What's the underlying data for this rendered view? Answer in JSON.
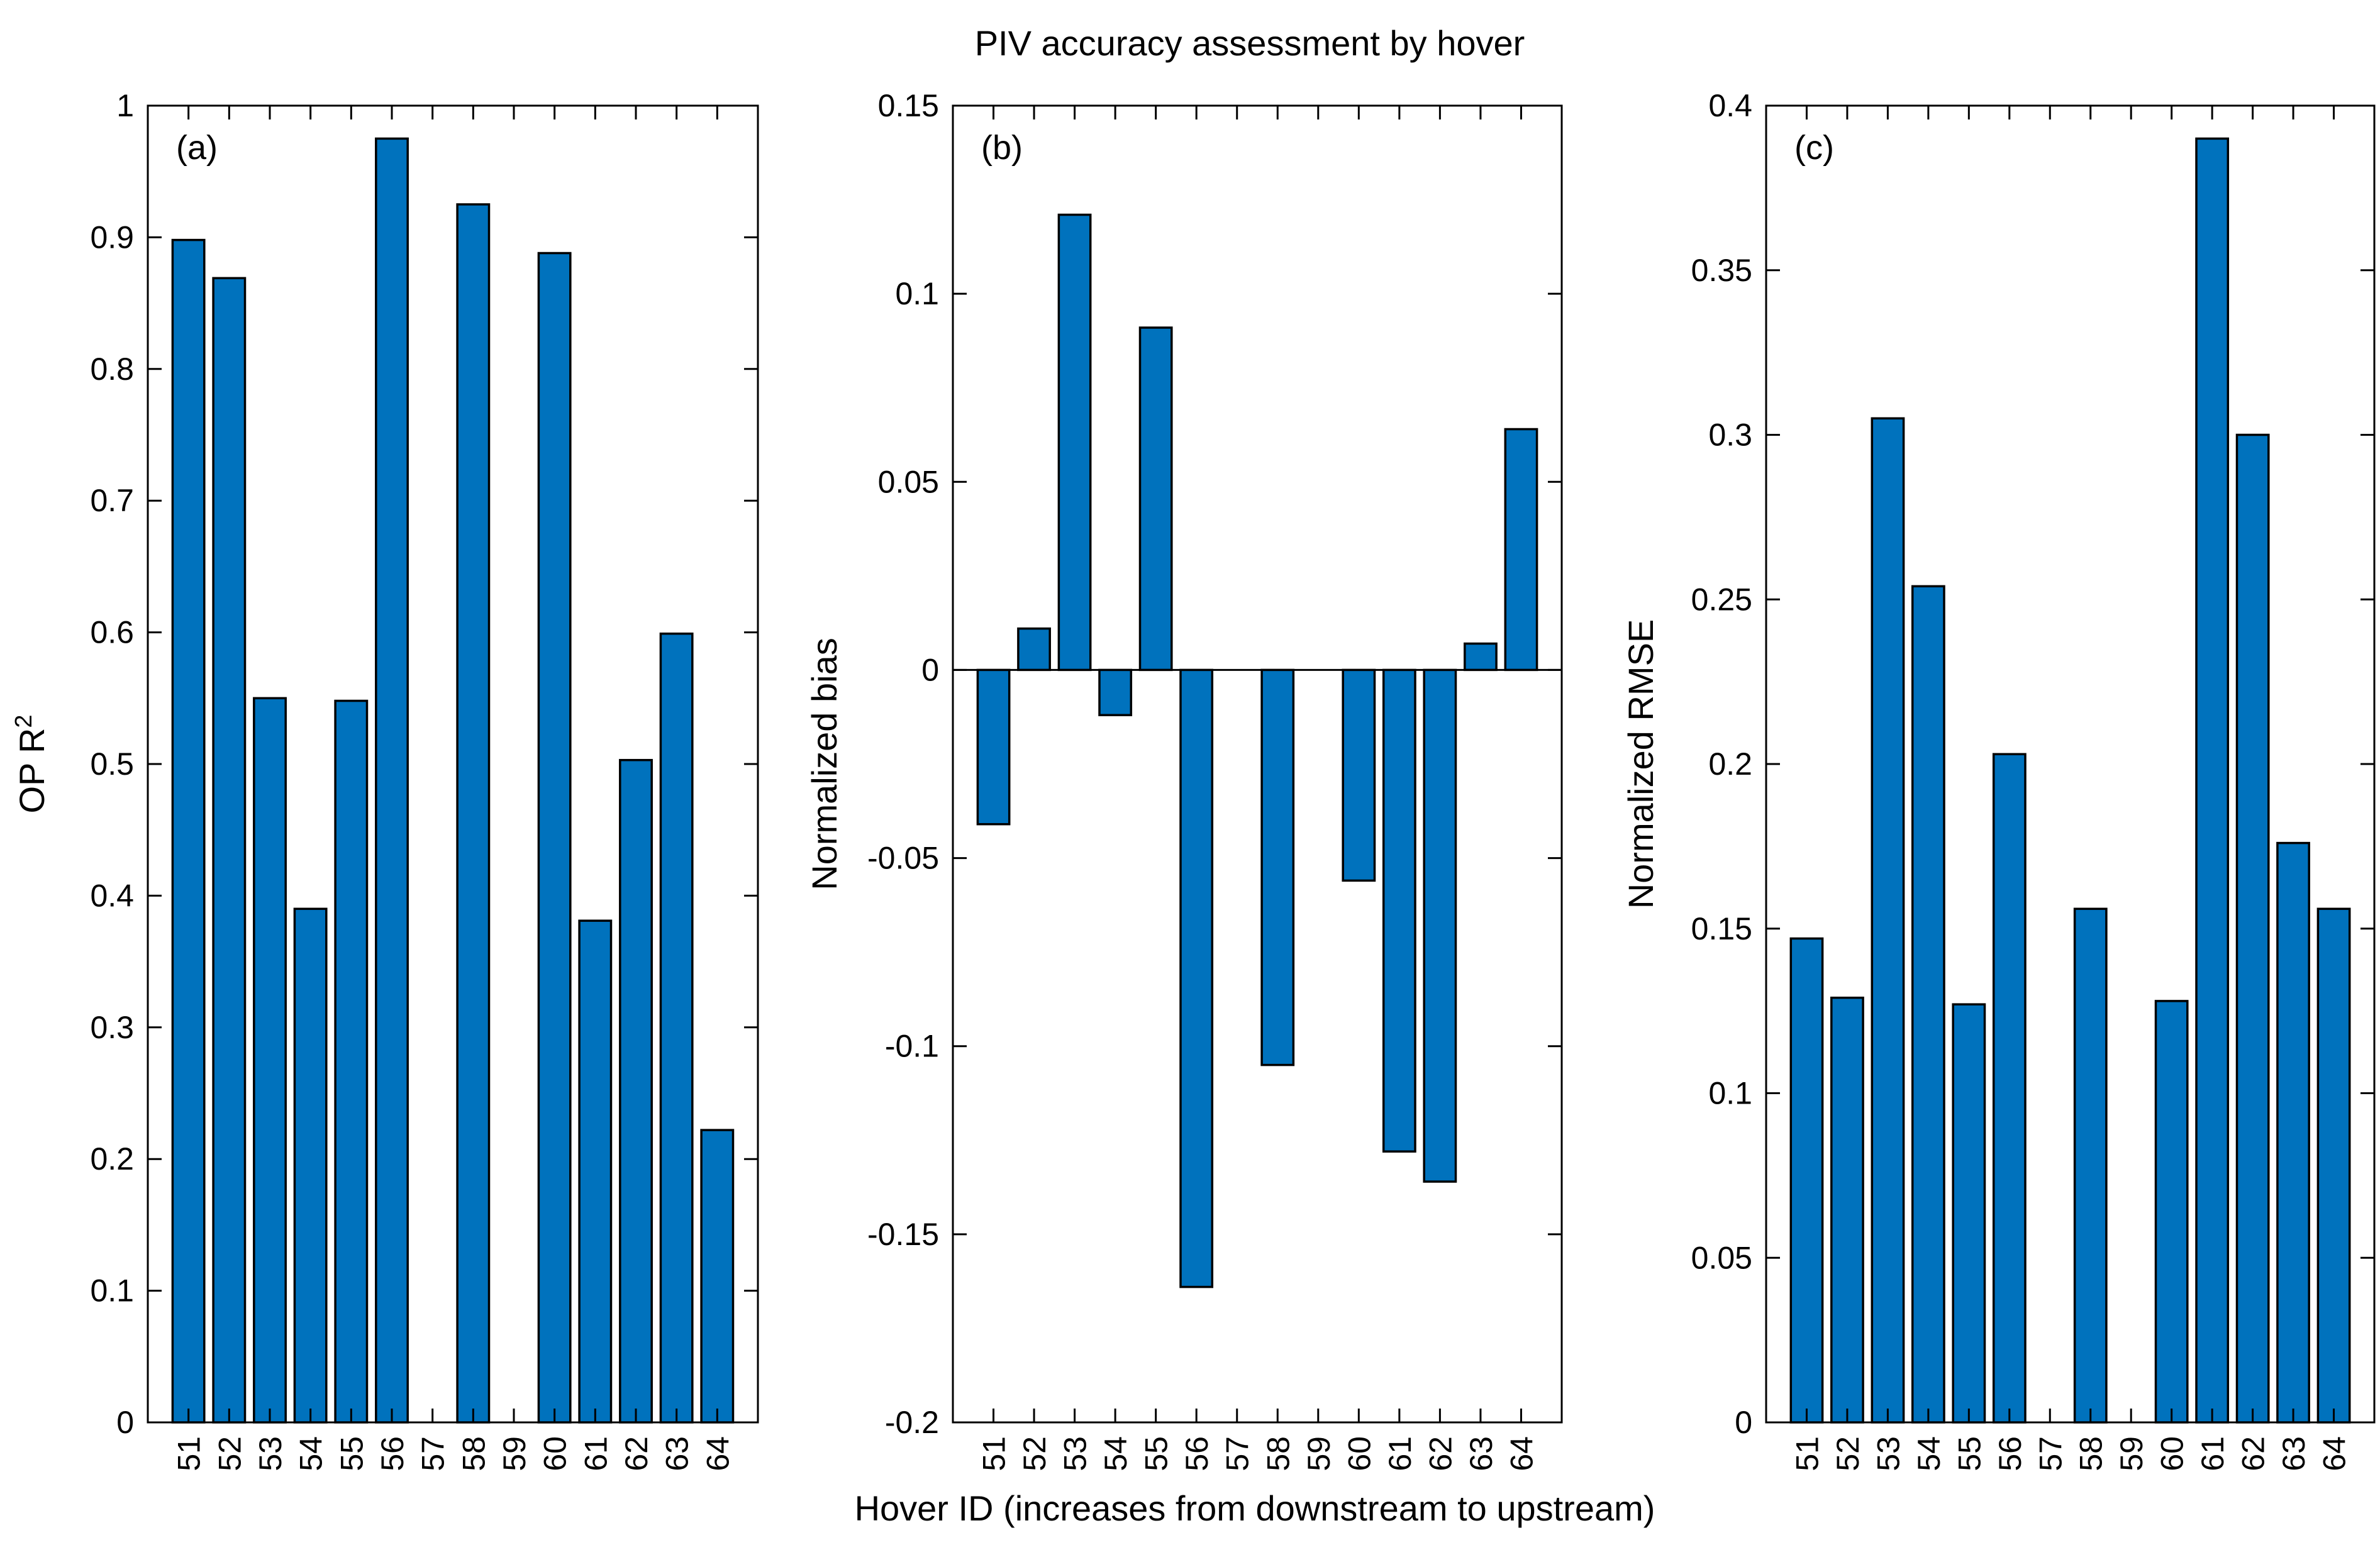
{
  "figure": {
    "title": "PIV accuracy assessment by hover",
    "shared_xlabel": "Hover ID (increases from downstream to upstream)",
    "bar_color": "#0072BD"
  },
  "chart_data": [
    {
      "type": "bar",
      "panel_label": "(a)",
      "title": "",
      "xlabel": "",
      "ylabel": "OP R",
      "ylabel_superscript": "2",
      "categories": [
        "51",
        "52",
        "53",
        "54",
        "55",
        "56",
        "57",
        "58",
        "59",
        "60",
        "61",
        "62",
        "63",
        "64"
      ],
      "values": [
        0.898,
        0.869,
        0.55,
        0.39,
        0.548,
        0.975,
        null,
        0.925,
        null,
        0.888,
        0.381,
        0.503,
        0.599,
        0.222
      ],
      "ylim": [
        0,
        1
      ],
      "yticks": [
        0,
        0.1,
        0.2,
        0.3,
        0.4,
        0.5,
        0.6,
        0.7,
        0.8,
        0.9,
        1
      ],
      "ytick_labels": [
        "0",
        "0.1",
        "0.2",
        "0.3",
        "0.4",
        "0.5",
        "0.6",
        "0.7",
        "0.8",
        "0.9",
        "1"
      ],
      "grid": false
    },
    {
      "type": "bar",
      "panel_label": "(b)",
      "title": "",
      "xlabel": "",
      "ylabel": "Normalized bias",
      "ylabel_superscript": "",
      "categories": [
        "51",
        "52",
        "53",
        "54",
        "55",
        "56",
        "57",
        "58",
        "59",
        "60",
        "61",
        "62",
        "63",
        "64"
      ],
      "values": [
        -0.041,
        0.011,
        0.121,
        -0.012,
        0.091,
        -0.164,
        null,
        -0.105,
        null,
        -0.056,
        -0.128,
        -0.136,
        0.007,
        0.064
      ],
      "ylim": [
        -0.2,
        0.15
      ],
      "yticks": [
        -0.2,
        -0.15,
        -0.1,
        -0.05,
        0,
        0.05,
        0.1,
        0.15
      ],
      "ytick_labels": [
        "-0.2",
        "-0.15",
        "-0.1",
        "-0.05",
        "0",
        "0.05",
        "0.1",
        "0.15"
      ],
      "grid": false
    },
    {
      "type": "bar",
      "panel_label": "(c)",
      "title": "",
      "xlabel": "",
      "ylabel": "Normalized RMSE",
      "ylabel_superscript": "",
      "categories": [
        "51",
        "52",
        "53",
        "54",
        "55",
        "56",
        "57",
        "58",
        "59",
        "60",
        "61",
        "62",
        "63",
        "64"
      ],
      "values": [
        0.147,
        0.129,
        0.305,
        0.254,
        0.127,
        0.203,
        null,
        0.156,
        null,
        0.128,
        0.39,
        0.3,
        0.176,
        0.156
      ],
      "ylim": [
        0,
        0.4
      ],
      "yticks": [
        0,
        0.05,
        0.1,
        0.15,
        0.2,
        0.25,
        0.3,
        0.35,
        0.4
      ],
      "ytick_labels": [
        "0",
        "0.05",
        "0.1",
        "0.15",
        "0.2",
        "0.25",
        "0.3",
        "0.35",
        "0.4"
      ],
      "grid": false
    }
  ]
}
